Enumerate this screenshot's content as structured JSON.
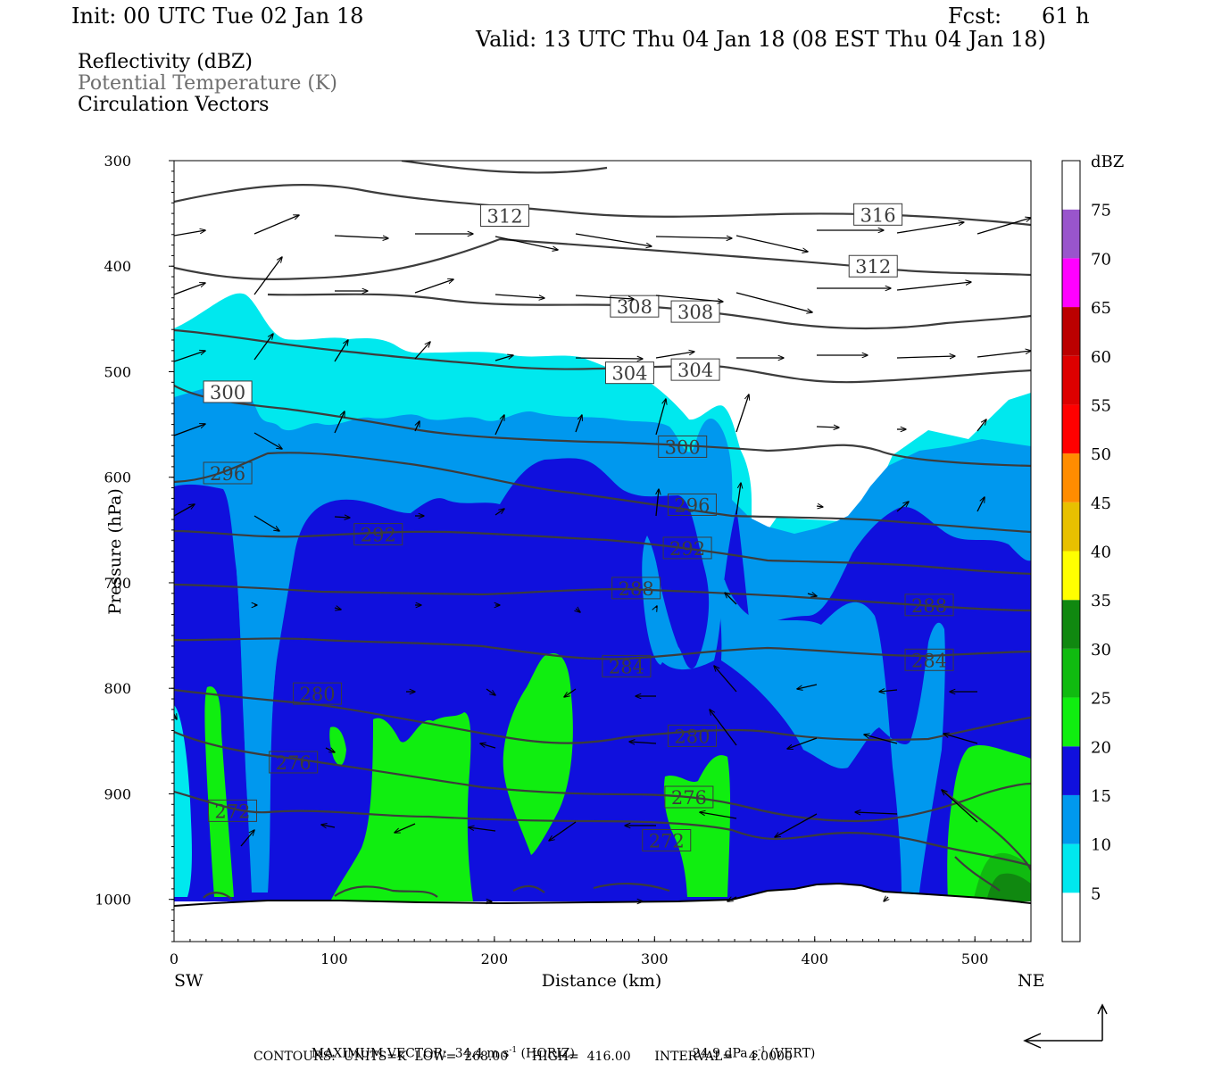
{
  "header": {
    "init": "Init: 00 UTC Tue 02 Jan 18",
    "fcst_label": "Fcst:",
    "fcst_value": "61 h",
    "valid": "Valid: 13 UTC Thu 04 Jan 18 (08 EST Thu 04 Jan 18)"
  },
  "fields": {
    "reflectivity": "Reflectivity (dBZ)",
    "theta": "Potential Temperature (K)",
    "vectors": "Circulation Vectors"
  },
  "chart_data": {
    "type": "cross-section",
    "xlabel": "Distance (km)",
    "ylabel": "Pressure (hPa)",
    "x_ticks": [
      "0",
      "100",
      "200",
      "300",
      "400",
      "500"
    ],
    "y_ticks": [
      "300",
      "400",
      "500",
      "600",
      "700",
      "800",
      "900",
      "1000"
    ],
    "xlim": [
      0,
      535
    ],
    "ylim": [
      1040,
      300
    ],
    "left_end": "SW",
    "right_end": "NE",
    "colorbar": {
      "title": "dBZ",
      "labels": [
        "5",
        "10",
        "15",
        "20",
        "25",
        "30",
        "35",
        "40",
        "45",
        "50",
        "55",
        "60",
        "65",
        "70",
        "75"
      ],
      "colors": [
        "#ffffff",
        "#00e8ee",
        "#0098ee",
        "#1010dd",
        "#10ee10",
        "#10bb10",
        "#108810",
        "#ffff00",
        "#e8c000",
        "#ff8c00",
        "#ff0000",
        "#dd0000",
        "#bb0000",
        "#ff00ff",
        "#9955cc",
        "#ffffff"
      ]
    },
    "theta_labels": [
      {
        "text": "312",
        "x": 192,
        "p": 352
      },
      {
        "text": "316",
        "x": 425,
        "p": 351
      },
      {
        "text": "312",
        "x": 422,
        "p": 400
      },
      {
        "text": "308",
        "x": 273,
        "p": 438
      },
      {
        "text": "308",
        "x": 311,
        "p": 443
      },
      {
        "text": "304",
        "x": 270,
        "p": 501
      },
      {
        "text": "304",
        "x": 311,
        "p": 498
      },
      {
        "text": "300",
        "x": 19,
        "p": 519
      },
      {
        "text": "300",
        "x": 303,
        "p": 571
      },
      {
        "text": "296",
        "x": 19,
        "p": 596
      },
      {
        "text": "296",
        "x": 309,
        "p": 626
      },
      {
        "text": "292",
        "x": 113,
        "p": 654
      },
      {
        "text": "292",
        "x": 306,
        "p": 667
      },
      {
        "text": "288",
        "x": 274,
        "p": 705
      },
      {
        "text": "288",
        "x": 457,
        "p": 721
      },
      {
        "text": "284",
        "x": 268,
        "p": 779
      },
      {
        "text": "284",
        "x": 457,
        "p": 773
      },
      {
        "text": "280",
        "x": 75,
        "p": 805
      },
      {
        "text": "280",
        "x": 309,
        "p": 845
      },
      {
        "text": "276",
        "x": 60,
        "p": 870
      },
      {
        "text": "276",
        "x": 307,
        "p": 903
      },
      {
        "text": "272",
        "x": 22,
        "p": 916
      },
      {
        "text": "272",
        "x": 293,
        "p": 944
      }
    ],
    "theta_range": {
      "low": 268.0,
      "high": 416.0,
      "interval": 4.0,
      "units": "K"
    },
    "max_vector": {
      "horiz": 34.4,
      "horiz_units": "m s-1",
      "vert": 24.9,
      "vert_units": "dPa s-1"
    }
  },
  "footer": {
    "max_vector_text": "MAXIMUM VECTOR:  34.4 m s",
    "horiz_suffix": " (HORIZ)",
    "vert_text": "24.9 dPa s",
    "vert_suffix": " (VERT)",
    "sup": "-1",
    "contours": "CONTOURS:  UNITS=K  LOW=  268.00      HIGH=  416.00      INTERVAL=    4.0000"
  }
}
